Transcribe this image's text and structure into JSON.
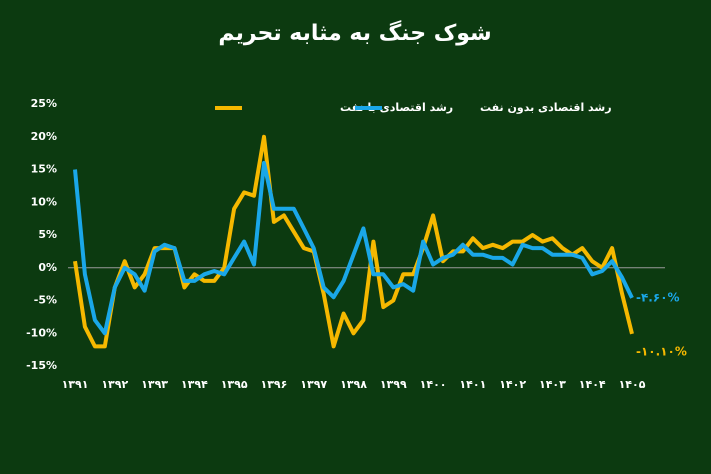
{
  "chart_data": {
    "type": "line",
    "title": "شوک جنگ به مثابه تحریم",
    "x": [
      1391,
      1391.25,
      1391.5,
      1391.75,
      1392,
      1392.25,
      1392.5,
      1392.75,
      1393,
      1393.25,
      1393.5,
      1393.75,
      1394,
      1394.25,
      1394.5,
      1394.75,
      1395,
      1395.25,
      1395.5,
      1395.75,
      1396,
      1396.25,
      1396.5,
      1396.75,
      1397,
      1397.25,
      1397.5,
      1397.75,
      1398,
      1398.25,
      1398.5,
      1398.75,
      1399,
      1399.25,
      1399.5,
      1399.75,
      1400,
      1400.25,
      1400.5,
      1400.75,
      1401,
      1401.25,
      1401.5,
      1401.75,
      1402,
      1402.25,
      1402.5,
      1402.75,
      1403,
      1403.25,
      1403.5,
      1403.75,
      1404,
      1404.25,
      1404.5,
      1404.75,
      1405
    ],
    "series": [
      {
        "name": "رشد اقتصادی با نفت",
        "color": "#f5b800",
        "values": [
          1,
          -9,
          -12,
          -12,
          -3,
          1,
          -3,
          -1,
          3,
          3,
          3,
          -3,
          -1,
          -2,
          -2,
          0,
          9,
          11.5,
          11,
          20,
          7,
          8,
          5.5,
          3,
          2.5,
          -4,
          -12,
          -7,
          -10,
          -8,
          4,
          -6,
          -5,
          -1,
          -1,
          3,
          8,
          1,
          2.5,
          2.5,
          4.5,
          3,
          3.5,
          3,
          4,
          4,
          5,
          4,
          4.5,
          3,
          2,
          3,
          1,
          0,
          3,
          -4,
          -10.1
        ],
        "value_labels": [
          null,
          null,
          null,
          null,
          null,
          null,
          null,
          null,
          null,
          null,
          null,
          null,
          null,
          null,
          null,
          null,
          null,
          null,
          null,
          null,
          null,
          null,
          null,
          null,
          null,
          null,
          null,
          null,
          null,
          null,
          null,
          null,
          null,
          null,
          null,
          null,
          null,
          null,
          null,
          null,
          null,
          null,
          null,
          null,
          null,
          null,
          null,
          null,
          null,
          null,
          null,
          null,
          null,
          null,
          null,
          null,
          "-۱۰.۱۰%"
        ]
      },
      {
        "name": "رشد اقتصادی بدون نفت",
        "color": "#1aa7e8",
        "values": [
          15,
          -1,
          -8,
          -10,
          -3,
          0,
          -1,
          -3.5,
          2.5,
          3.5,
          3,
          -2,
          -2,
          -1,
          -0.5,
          -1,
          1.5,
          4,
          0.5,
          16,
          9,
          9,
          9,
          6,
          3,
          -3,
          -4.5,
          -2,
          2,
          6,
          -1,
          -1,
          -3,
          -2.5,
          -3.5,
          4,
          0.5,
          1.5,
          2,
          3.5,
          2,
          2,
          1.5,
          1.5,
          0.5,
          3.5,
          3,
          3,
          2,
          2,
          2,
          1.5,
          -1,
          -0.5,
          1,
          -1.5,
          -4.6
        ],
        "value_labels": [
          null,
          null,
          null,
          null,
          null,
          null,
          null,
          null,
          null,
          null,
          null,
          null,
          null,
          null,
          null,
          null,
          null,
          null,
          null,
          null,
          null,
          null,
          null,
          null,
          null,
          null,
          null,
          null,
          null,
          null,
          null,
          null,
          null,
          null,
          null,
          null,
          null,
          null,
          null,
          null,
          null,
          null,
          null,
          null,
          null,
          null,
          null,
          null,
          null,
          null,
          null,
          null,
          null,
          null,
          null,
          null,
          "-۴.۶۰%"
        ]
      }
    ],
    "xlim": [
      1391,
      1405
    ],
    "xticks": [
      {
        "value": 1391,
        "label": "۱۳۹۱"
      },
      {
        "value": 1392,
        "label": "۱۳۹۲"
      },
      {
        "value": 1393,
        "label": "۱۳۹۳"
      },
      {
        "value": 1394,
        "label": "۱۳۹۴"
      },
      {
        "value": 1395,
        "label": "۱۳۹۵"
      },
      {
        "value": 1396,
        "label": "۱۳۹۶"
      },
      {
        "value": 1397,
        "label": "۱۳۹۷"
      },
      {
        "value": 1398,
        "label": "۱۳۹۸"
      },
      {
        "value": 1399,
        "label": "۱۳۹۹"
      },
      {
        "value": 1400,
        "label": "۱۴۰۰"
      },
      {
        "value": 1401,
        "label": "۱۴۰۱"
      },
      {
        "value": 1402,
        "label": "۱۴۰۲"
      },
      {
        "value": 1403,
        "label": "۱۴۰۳"
      },
      {
        "value": 1404,
        "label": "۱۴۰۴"
      },
      {
        "value": 1405,
        "label": "۱۴۰۵"
      }
    ],
    "ylim": [
      -15,
      25
    ],
    "yticks": [
      {
        "value": -15,
        "label": "-15%"
      },
      {
        "value": -10,
        "label": "-10%"
      },
      {
        "value": -5,
        "label": "-5%"
      },
      {
        "value": 0,
        "label": "0%"
      },
      {
        "value": 5,
        "label": "5%"
      },
      {
        "value": 10,
        "label": "10%"
      },
      {
        "value": 15,
        "label": "15%"
      },
      {
        "value": 20,
        "label": "20%"
      },
      {
        "value": 25,
        "label": "25%"
      }
    ],
    "grid": false
  }
}
